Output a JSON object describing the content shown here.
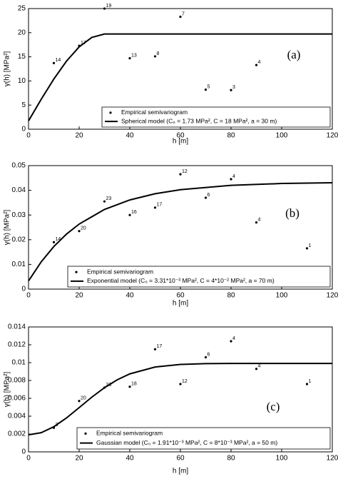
{
  "chart_data": [
    {
      "type": "scatter-line",
      "panel": "(a)",
      "xlabel": "h [m]",
      "ylabel": "γ(h) [MPa²]",
      "xlim": [
        0,
        120
      ],
      "xticks": [
        0,
        20,
        40,
        60,
        80,
        100,
        120
      ],
      "ylim": [
        0,
        25
      ],
      "yticks": [
        0,
        5,
        10,
        15,
        20,
        25
      ],
      "series": [
        {
          "name": "Empirical semivariogram",
          "kind": "scatter",
          "color": "#000000",
          "x": [
            10,
            20,
            30,
            40,
            50,
            60,
            70,
            80,
            90
          ],
          "values": [
            13.7,
            17.3,
            25,
            14.7,
            15.1,
            23.3,
            8.2,
            8.1,
            13.3
          ],
          "counts": [
            14,
            17,
            19,
            13,
            8,
            7,
            5,
            3,
            4
          ]
        },
        {
          "name": "Spherical model (C₀ = 1.73 MPa², C = 18 MPa², a = 30 m)",
          "kind": "line",
          "color": "#000000",
          "x": [
            0,
            5,
            10,
            15,
            20,
            25,
            30,
            120
          ],
          "values": [
            1.73,
            6.19,
            10.4,
            14.11,
            17.06,
            19.02,
            19.73,
            19.73
          ]
        }
      ]
    },
    {
      "type": "scatter-line",
      "panel": "(b)",
      "xlabel": "h [m]",
      "ylabel": "γ(h) [MPa²]",
      "xlim": [
        0,
        120
      ],
      "xticks": [
        0,
        20,
        40,
        60,
        80,
        100,
        120
      ],
      "ylim": [
        0,
        0.05
      ],
      "yticks": [
        0,
        0.01,
        0.02,
        0.03,
        0.04,
        0.05
      ],
      "series": [
        {
          "name": "Empirical semivariogram",
          "kind": "scatter",
          "color": "#000000",
          "x": [
            10,
            20,
            30,
            40,
            50,
            60,
            70,
            80,
            90,
            110
          ],
          "values": [
            0.019,
            0.0235,
            0.0355,
            0.03,
            0.033,
            0.0465,
            0.037,
            0.0445,
            0.027,
            0.0165
          ],
          "counts": [
            14,
            20,
            23,
            16,
            17,
            12,
            6,
            4,
            4,
            1
          ]
        },
        {
          "name": "Exponential model (C₀ = 3.31*10⁻³ MPa², C = 4*10⁻² MPa², a = 70 m)",
          "kind": "line",
          "color": "#000000",
          "x": [
            0,
            5,
            10,
            15,
            20,
            30,
            40,
            50,
            60,
            80,
            100,
            120
          ],
          "values": [
            0.00331,
            0.01103,
            0.01725,
            0.02228,
            0.02633,
            0.03225,
            0.0361,
            0.03862,
            0.04025,
            0.042,
            0.04276,
            0.04308
          ]
        }
      ]
    },
    {
      "type": "scatter-line",
      "panel": "(c)",
      "xlabel": "h [m]",
      "ylabel": "γ(h) [MPa²]",
      "xlim": [
        0,
        120
      ],
      "xticks": [
        0,
        20,
        40,
        60,
        80,
        100,
        120
      ],
      "ylim": [
        0,
        0.014
      ],
      "yticks": [
        0,
        0.002,
        0.004,
        0.006,
        0.008,
        0.01,
        0.012,
        0.014
      ],
      "series": [
        {
          "name": "Empirical semivariogram",
          "kind": "scatter",
          "color": "#000000",
          "x": [
            10,
            20,
            30,
            40,
            50,
            60,
            70,
            80,
            90,
            110
          ],
          "values": [
            0.0027,
            0.0057,
            0.0072,
            0.0073,
            0.0115,
            0.0076,
            0.0106,
            0.0124,
            0.0093,
            0.0076
          ],
          "counts": [
            3,
            20,
            23,
            18,
            17,
            12,
            6,
            4,
            4,
            1
          ]
        },
        {
          "name": "Gaussian model (C₀ = 1.91*10⁻³ MPa², C = 8*10⁻³ MPa², a = 50 m)",
          "kind": "line",
          "color": "#000000",
          "x": [
            0,
            5,
            10,
            15,
            20,
            25,
            30,
            35,
            40,
            50,
            60,
            70,
            80,
            120
          ],
          "values": [
            0.00191,
            0.00215,
            0.00282,
            0.0038,
            0.00496,
            0.00613,
            0.00719,
            0.00807,
            0.00874,
            0.00951,
            0.0098,
            0.00989,
            0.00991,
            0.00991
          ]
        }
      ]
    }
  ]
}
